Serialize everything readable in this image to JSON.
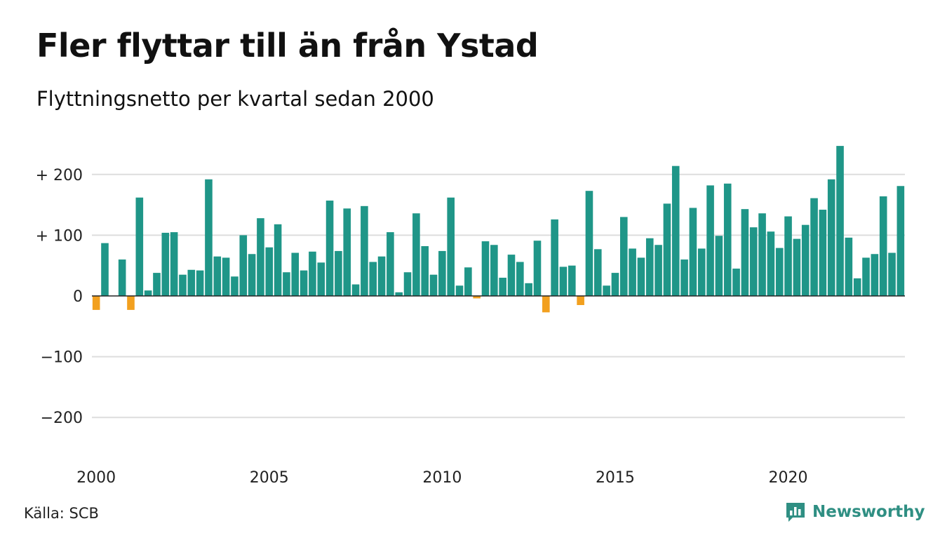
{
  "title": "Fler flyttar till än från Ystad",
  "subtitle": "Flyttningsnetto per kvartal sedan 2000",
  "source": "Källa: SCB",
  "brand": "Newsworthy",
  "colors": {
    "positive": "#1f9688",
    "negative": "#f2a01f",
    "grid": "#dddddd",
    "zero_line": "#222222",
    "brand": "#2f8f83"
  },
  "icons": {
    "logo": "bar-chart-speech-bubble-icon"
  },
  "chart_data": {
    "type": "bar",
    "x_start": "2000 Q1",
    "frequency": "quarterly",
    "values": [
      -23,
      87,
      0,
      60,
      -23,
      162,
      9,
      38,
      104,
      105,
      35,
      43,
      42,
      192,
      65,
      63,
      32,
      100,
      69,
      128,
      80,
      118,
      39,
      71,
      42,
      73,
      55,
      157,
      74,
      144,
      19,
      148,
      56,
      65,
      105,
      6,
      39,
      136,
      82,
      35,
      74,
      162,
      17,
      47,
      -4,
      90,
      84,
      30,
      68,
      56,
      21,
      91,
      -27,
      126,
      48,
      50,
      -15,
      173,
      77,
      17,
      38,
      130,
      78,
      63,
      95,
      84,
      152,
      214,
      60,
      145,
      78,
      182,
      99,
      185,
      45,
      143,
      113,
      136,
      106,
      79,
      131,
      94,
      117,
      161,
      142,
      192,
      247,
      96,
      29,
      63,
      69,
      164,
      71,
      181
    ],
    "ylim": [
      -250,
      250
    ],
    "y_ticks": [
      200,
      100,
      0,
      -100,
      -200
    ],
    "y_tick_labels": [
      "+ 200",
      "+ 100",
      "0",
      "−100",
      "−200"
    ],
    "x_ticks": [
      "2000",
      "2005",
      "2010",
      "2015",
      "2020"
    ],
    "grid": true,
    "legend": "none"
  }
}
